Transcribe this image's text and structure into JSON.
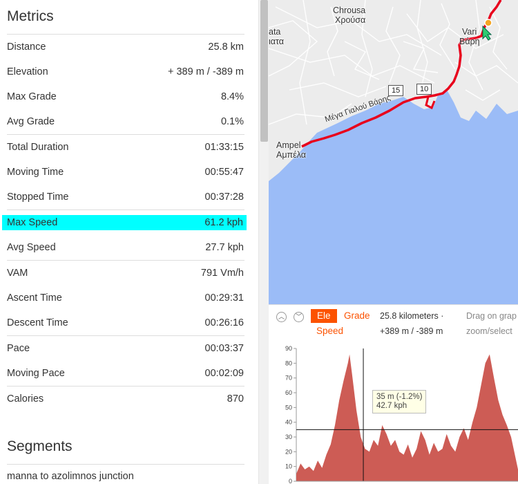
{
  "metrics": {
    "title": "Metrics",
    "rows": [
      {
        "label": "Distance",
        "value": "25.8 km"
      },
      {
        "label": "Elevation",
        "value": "+ 389 m / -389 m"
      },
      {
        "label": "Max Grade",
        "value": "8.4%"
      },
      {
        "label": "Avg Grade",
        "value": "0.1%"
      },
      {
        "label": "Total Duration",
        "value": "01:33:15"
      },
      {
        "label": "Moving Time",
        "value": "00:55:47"
      },
      {
        "label": "Stopped Time",
        "value": "00:37:28"
      },
      {
        "label": "Max Speed",
        "value": "61.2 kph"
      },
      {
        "label": "Avg Speed",
        "value": "27.7 kph"
      },
      {
        "label": "VAM",
        "value": "791 Vm/h"
      },
      {
        "label": "Ascent Time",
        "value": "00:29:31"
      },
      {
        "label": "Descent Time",
        "value": "00:26:16"
      },
      {
        "label": "Pace",
        "value": "00:03:37"
      },
      {
        "label": "Moving Pace",
        "value": "00:02:09"
      },
      {
        "label": "Calories",
        "value": "870"
      }
    ]
  },
  "segments": {
    "title": "Segments",
    "items": [
      "manna to azolimnos junction"
    ]
  },
  "map": {
    "labels": {
      "chrousa_latin": "Chrousa",
      "chrousa_greek": "Χρούσα",
      "vari_latin": "Vari",
      "vari_greek": "Βάρη",
      "ata": "ata",
      "iata": "ιατα",
      "ampelia_latin": "Ampel",
      "ampelia_greek": "Αμπέλα",
      "road": "Μέγα Γιαλού Βάρης"
    },
    "km_markers": [
      "15",
      "10"
    ],
    "colors": {
      "water": "#9bbcf7",
      "land": "#ececec",
      "route": "#e8001c"
    }
  },
  "elevation_widget": {
    "tabs": {
      "ele": "Ele",
      "grade": "Grade",
      "speed": "Speed"
    },
    "summary_distance": "25.8 kilometers ·",
    "summary_elevation": "+389 m / -389 m",
    "hint_line1": "Drag on grap",
    "hint_line2": "zoom/select",
    "tooltip_line1": "35 m (-1.2%)",
    "tooltip_line2": "42.7 kph",
    "up_icon": "chevron-up-icon",
    "down_icon": "chevron-down-icon"
  },
  "chart_data": {
    "type": "area",
    "xlabel": "",
    "ylabel": "",
    "ylim": [
      0,
      90
    ],
    "yticks": [
      0,
      10,
      20,
      30,
      40,
      50,
      60,
      70,
      80,
      90
    ],
    "fill_color": "#cd5c55",
    "x": [
      0,
      0.5,
      1,
      1.5,
      2,
      2.5,
      3,
      3.5,
      4,
      4.5,
      5,
      5.5,
      6,
      6.2,
      6.5,
      7,
      7.5,
      8,
      8.5,
      9,
      9.5,
      10,
      10.5,
      11,
      11.5,
      12,
      12.5,
      13,
      13.5,
      14,
      14.5,
      15,
      15.5,
      16,
      16.5,
      17,
      17.5,
      18,
      18.5,
      19,
      19.5,
      20,
      20.5,
      21,
      21.5,
      22,
      22.5,
      23,
      23.5,
      24,
      24.5,
      25,
      25.8
    ],
    "values": [
      5,
      12,
      8,
      10,
      7,
      14,
      9,
      18,
      25,
      38,
      55,
      68,
      80,
      86,
      72,
      48,
      30,
      22,
      20,
      28,
      24,
      38,
      32,
      24,
      28,
      20,
      18,
      25,
      16,
      22,
      34,
      28,
      18,
      26,
      20,
      22,
      32,
      24,
      20,
      30,
      36,
      28,
      40,
      50,
      65,
      80,
      86,
      70,
      55,
      45,
      38,
      30,
      8
    ],
    "cursor": {
      "x": 7.8,
      "y": 35
    }
  }
}
